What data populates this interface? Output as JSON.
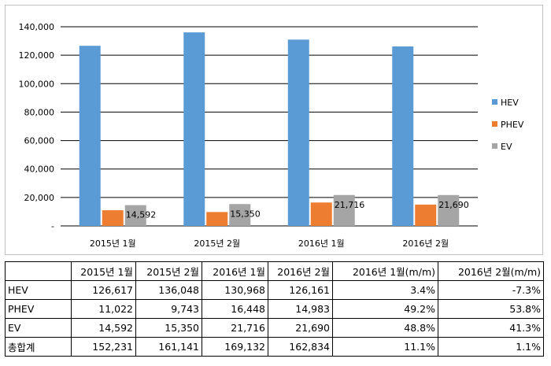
{
  "chart_data": {
    "type": "bar",
    "categories": [
      "2015년 1월",
      "2015년 2월",
      "2016년 1월",
      "2016년 2월"
    ],
    "series": [
      {
        "name": "HEV",
        "values": [
          126617,
          136048,
          130968,
          126161
        ],
        "color": "#5b9bd5"
      },
      {
        "name": "PHEV",
        "values": [
          11022,
          9743,
          16448,
          14983
        ],
        "color": "#ed7d31"
      },
      {
        "name": "EV",
        "values": [
          14592,
          15350,
          21716,
          21690
        ],
        "color": "#a5a5a5"
      }
    ],
    "data_labels": {
      "series": "EV",
      "values": [
        "14,592",
        "15,350",
        "21,716",
        "21,690"
      ]
    },
    "y_ticks": [
      "-",
      "20,000",
      "40,000",
      "60,000",
      "80,000",
      "100,000",
      "120,000",
      "140,000"
    ],
    "ylim": [
      0,
      140000
    ],
    "grid": true,
    "legend_position": "right"
  },
  "table": {
    "headers": [
      "",
      "2015년 1월",
      "2015년 2월",
      "2016년 1월",
      "2016년 2월",
      "2016년 1월(m/m)",
      "2016년 2월(m/m)"
    ],
    "rows": [
      [
        "HEV",
        "126,617",
        "136,048",
        "130,968",
        "126,161",
        "3.4%",
        "-7.3%"
      ],
      [
        "PHEV",
        "11,022",
        "9,743",
        "16,448",
        "14,983",
        "49.2%",
        "53.8%"
      ],
      [
        "EV",
        "14,592",
        "15,350",
        "21,716",
        "21,690",
        "48.8%",
        "41.3%"
      ],
      [
        "총합계",
        "152,231",
        "161,141",
        "169,132",
        "162,834",
        "11.1%",
        "1.1%"
      ]
    ]
  }
}
